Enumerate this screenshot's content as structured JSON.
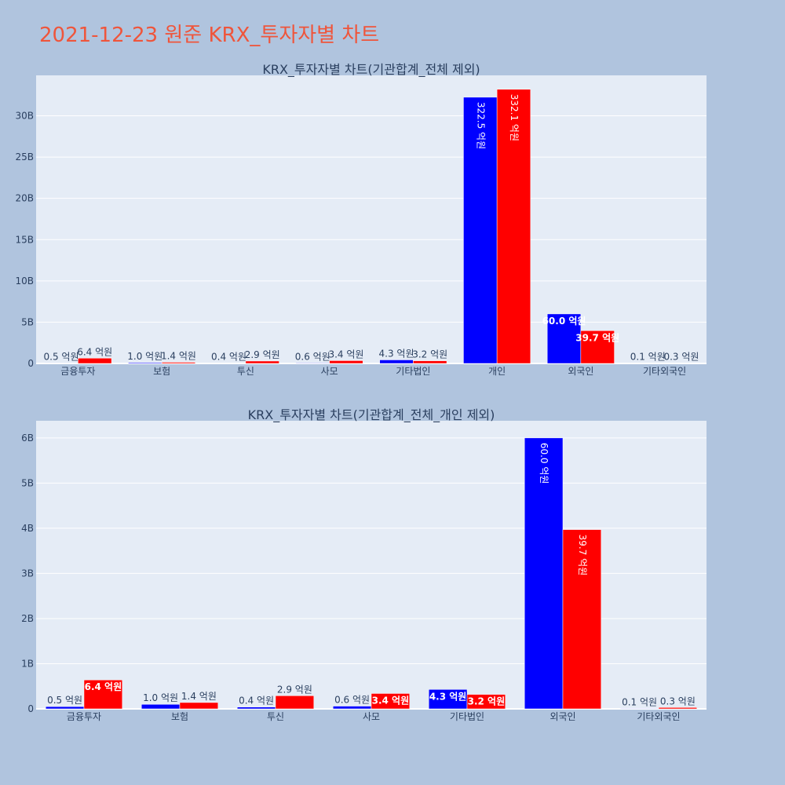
{
  "page": {
    "title": "2021-12-23 원준 KRX_투자자별 차트"
  },
  "colors": {
    "bg": "#b0c4de",
    "plot_bg": "#e5ecf6",
    "series_a": "#0000ff",
    "series_b": "#ff0000",
    "title": "#ef553b",
    "text": "#2a3f5f"
  },
  "chart_data": [
    {
      "type": "bar",
      "title": "KRX_투자자별 차트(기관합계_전체 제외)",
      "categories": [
        "금융투자",
        "보험",
        "투신",
        "사모",
        "기타법인",
        "개인",
        "외국인",
        "기타외국인"
      ],
      "series": [
        {
          "color": "#0000ff",
          "values": [
            0.05,
            0.1,
            0.04,
            0.06,
            0.43,
            32.25,
            6.0,
            0.01
          ],
          "labels": [
            "0.5 억원",
            "1.0 억원",
            "0.4 억원",
            "0.6 억원",
            "4.3 억원",
            "322.5 억원",
            "60.0 억원",
            "0.1 억원"
          ]
        },
        {
          "color": "#ff0000",
          "values": [
            0.64,
            0.14,
            0.29,
            0.34,
            0.32,
            33.21,
            3.97,
            0.03
          ],
          "labels": [
            "6.4 억원",
            "1.4 억원",
            "2.9 억원",
            "3.4 억원",
            "3.2 억원",
            "332.1 억원",
            "39.7 억원",
            "0.3 억원"
          ]
        }
      ],
      "yticks": [
        0,
        5,
        10,
        15,
        20,
        25,
        30
      ],
      "ytick_labels": [
        "0",
        "5B",
        "10B",
        "15B",
        "20B",
        "25B",
        "30B"
      ],
      "ylim": [
        0,
        34.9
      ],
      "grid": true
    },
    {
      "type": "bar",
      "title": "KRX_투자자별 차트(기관합계_전체_개인 제외)",
      "categories": [
        "금융투자",
        "보험",
        "투신",
        "사모",
        "기타법인",
        "외국인",
        "기타외국인"
      ],
      "series": [
        {
          "color": "#0000ff",
          "values": [
            0.05,
            0.1,
            0.04,
            0.06,
            0.43,
            6.0,
            0.01
          ],
          "labels": [
            "0.5 억원",
            "1.0 억원",
            "0.4 억원",
            "0.6 억원",
            "4.3 억원",
            "60.0 억원",
            "0.1 억원"
          ]
        },
        {
          "color": "#ff0000",
          "values": [
            0.64,
            0.14,
            0.29,
            0.34,
            0.32,
            3.97,
            0.03
          ],
          "labels": [
            "6.4 억원",
            "1.4 억원",
            "2.9 억원",
            "3.4 억원",
            "3.2 억원",
            "39.7 억원",
            "0.3 억원"
          ]
        }
      ],
      "yticks": [
        0,
        1,
        2,
        3,
        4,
        5,
        6
      ],
      "ytick_labels": [
        "0",
        "1B",
        "2B",
        "3B",
        "4B",
        "5B",
        "6B"
      ],
      "ylim": [
        0,
        6.38
      ],
      "grid": true
    }
  ]
}
